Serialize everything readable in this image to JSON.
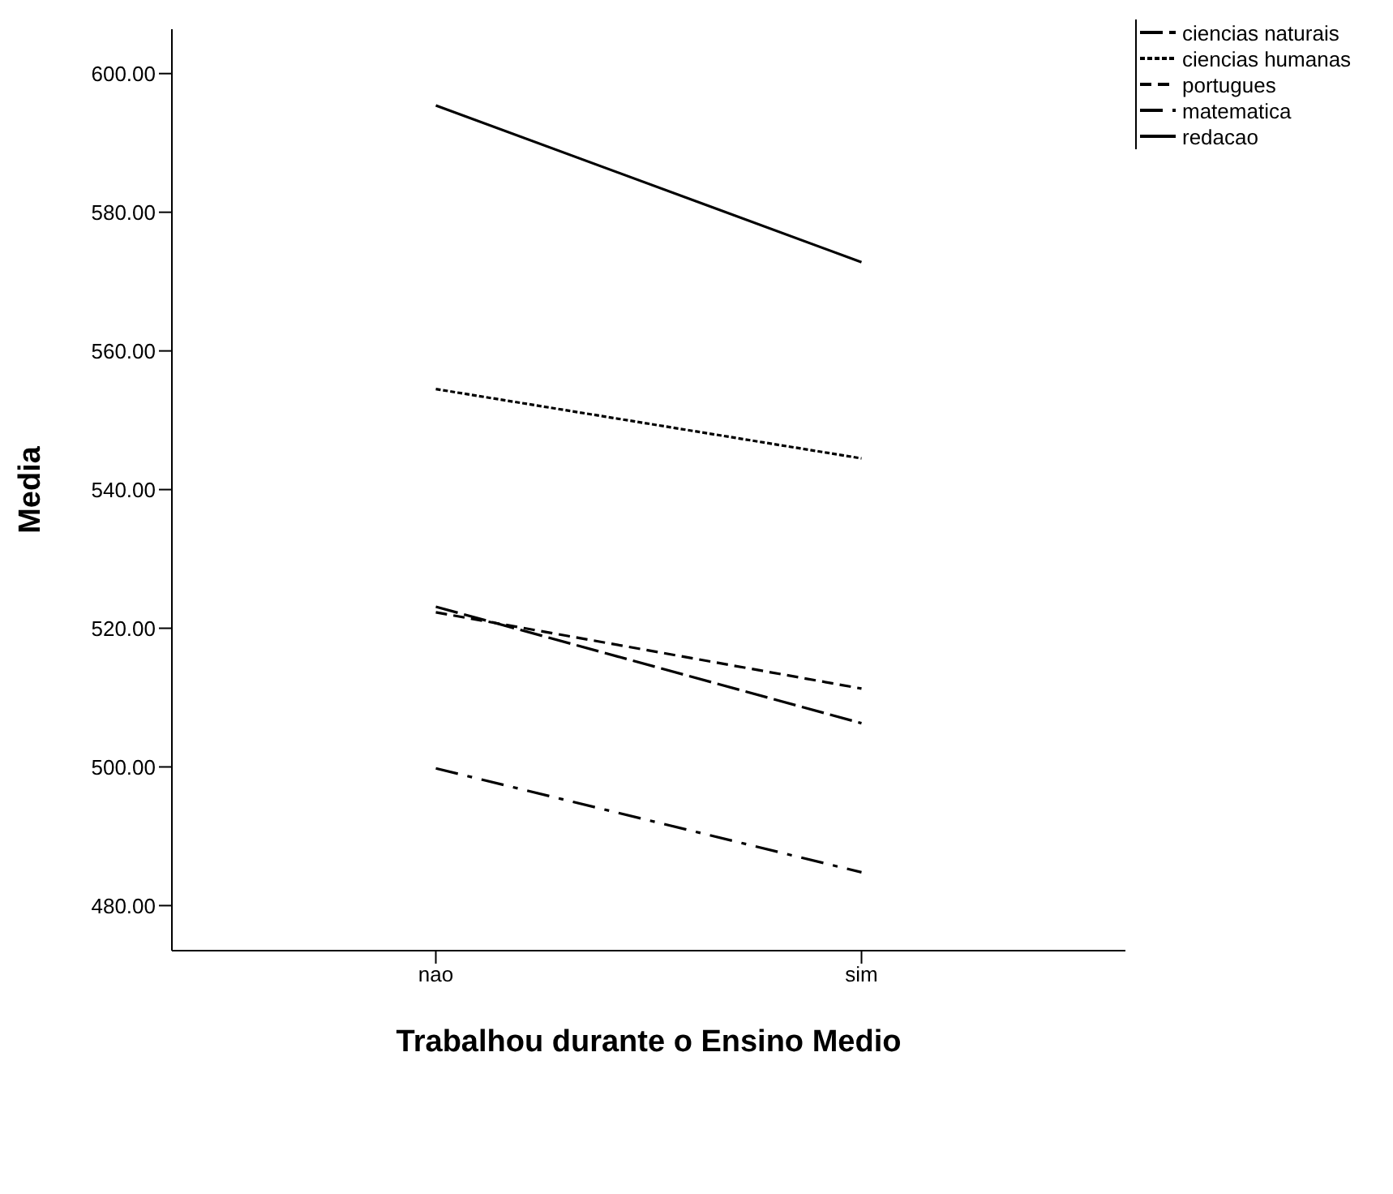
{
  "chart_data": {
    "type": "line",
    "xlabel": "Trabalhou durante o Ensino Medio",
    "ylabel": "Media",
    "categories": [
      "nao",
      "sim"
    ],
    "series": [
      {
        "name": "ciencias naturais",
        "color": "#000000",
        "line_style": "longdash",
        "values": [
          523.1,
          506.3
        ]
      },
      {
        "name": "ciencias humanas",
        "color": "#000000",
        "line_style": "dotted",
        "values": [
          554.5,
          544.5
        ]
      },
      {
        "name": "portugues",
        "color": "#000000",
        "line_style": "dashed",
        "values": [
          522.3,
          511.3
        ]
      },
      {
        "name": "matematica",
        "color": "#000000",
        "line_style": "dashdot",
        "values": [
          499.8,
          484.8
        ]
      },
      {
        "name": "redacao",
        "color": "#000000",
        "line_style": "solid",
        "values": [
          595.4,
          572.8
        ]
      }
    ],
    "ylim": [
      473.5,
      606.4
    ],
    "yticks": [
      {
        "value": 480,
        "label": "480.00"
      },
      {
        "value": 500,
        "label": "500.00"
      },
      {
        "value": 520,
        "label": "520.00"
      },
      {
        "value": 540,
        "label": "540.00"
      },
      {
        "value": 560,
        "label": "560.00"
      },
      {
        "value": 580,
        "label": "580.00"
      },
      {
        "value": 600,
        "label": "600.00"
      }
    ],
    "grid": false,
    "legend": "top right",
    "marker": "none"
  }
}
